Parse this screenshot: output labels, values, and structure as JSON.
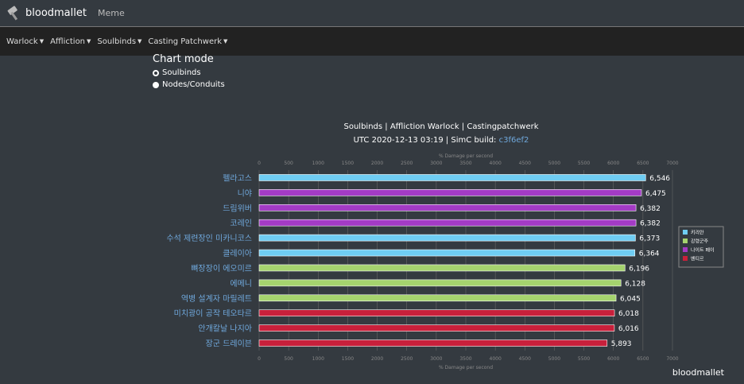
{
  "app": {
    "name": "bloodmallet",
    "top_link": "Meme"
  },
  "nav": {
    "menus": [
      {
        "label": "Warlock"
      },
      {
        "label": "Affliction"
      },
      {
        "label": "Soulbinds"
      },
      {
        "label": "Casting Patchwerk"
      }
    ]
  },
  "chart_mode": {
    "title": "Chart mode",
    "options": [
      {
        "label": "Soulbinds",
        "checked": true
      },
      {
        "label": "Nodes/Conduits",
        "checked": false
      }
    ]
  },
  "chart_data": {
    "type": "bar",
    "title": "Soulbinds | Affliction Warlock | Castingpatchwerk",
    "subtitle_prefix": "UTC 2020-12-13 03:19 | SimC build: ",
    "subtitle_link": "c3f6ef2",
    "xlabel": "% Damage per second",
    "xlim": [
      0,
      7000
    ],
    "xticks": [
      0,
      500,
      1000,
      1500,
      2000,
      2500,
      3000,
      3500,
      4000,
      4500,
      5000,
      5500,
      6000,
      6500,
      7000
    ],
    "categories": [
      "펠라고스",
      "니야",
      "드림위버",
      "코레인",
      "수석 제련장인 미카니코스",
      "클레이아",
      "뼈장장이 에오미르",
      "에메니",
      "역병 설계자 마릴레트",
      "미치광이 공작 테오타르",
      "안개칼날 나지아",
      "장군 드레이븐"
    ],
    "values": [
      6546,
      6475,
      6382,
      6382,
      6373,
      6364,
      6196,
      6128,
      6045,
      6018,
      6016,
      5893
    ],
    "value_labels": [
      "6,546",
      "6,475",
      "6,382",
      "6,382",
      "6,373",
      "6,364",
      "6,196",
      "6,128",
      "6,045",
      "6,018",
      "6,016",
      "5,893"
    ],
    "covenants": [
      "키리안",
      "나이트 페이",
      "나이트 페이",
      "나이트 페이",
      "키리안",
      "키리안",
      "강령군주",
      "강령군주",
      "강령군주",
      "벤티르",
      "벤티르",
      "벤티르"
    ],
    "legend": [
      {
        "name": "키리안",
        "color": "#6fcdf3"
      },
      {
        "name": "강령군주",
        "color": "#a5d36e"
      },
      {
        "name": "나이트 페이",
        "color": "#a33bc5"
      },
      {
        "name": "벤티르",
        "color": "#c8203b"
      }
    ],
    "grid": true,
    "legend_position": "right"
  },
  "footer": {
    "brand": "bloodmallet"
  },
  "colors": {
    "background": "#343a40",
    "link": "#6fa8dc",
    "axis_text": "#888888",
    "gridline": "#666666"
  }
}
